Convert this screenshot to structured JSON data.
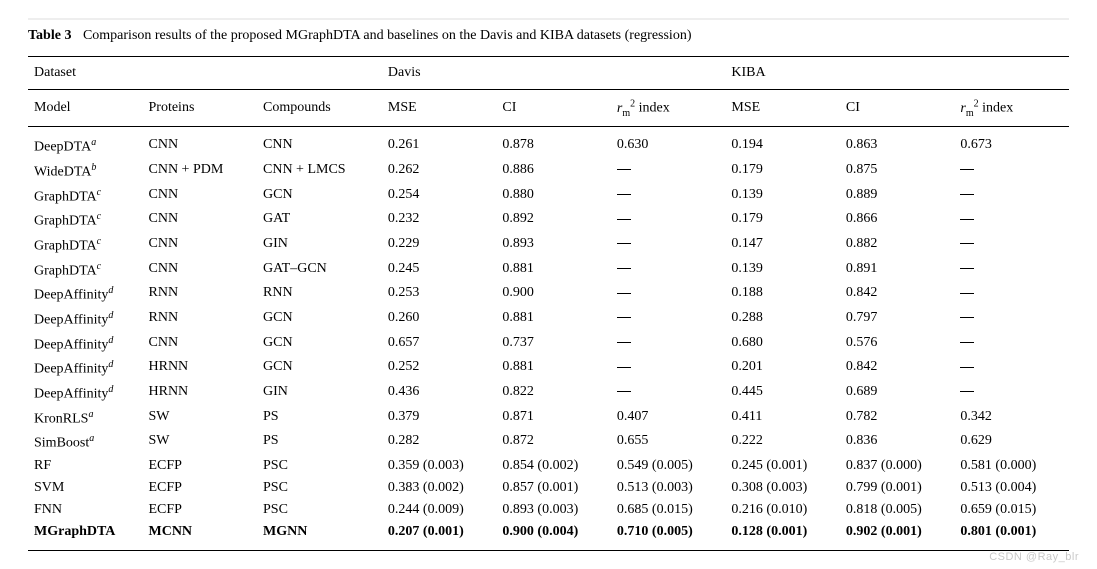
{
  "caption": {
    "label": "Table 3",
    "text": "Comparison results of the proposed MGraphDTA and baselines on the Davis and KIBA datasets (regression)"
  },
  "header": {
    "dataset": "Dataset",
    "davis": "Davis",
    "kiba": "KIBA",
    "model": "Model",
    "proteins": "Proteins",
    "compounds": "Compounds",
    "mse": "MSE",
    "ci": "CI",
    "rm_r": "r",
    "rm_m": "m",
    "rm_sq": "2",
    "rm_index": " index"
  },
  "rows": [
    {
      "model": "DeepDTA",
      "note": "a",
      "proteins": "CNN",
      "compounds": "CNN",
      "d_mse": "0.261",
      "d_ci": "0.878",
      "d_rm": "0.630",
      "k_mse": "0.194",
      "k_ci": "0.863",
      "k_rm": "0.673"
    },
    {
      "model": "WideDTA",
      "note": "b",
      "proteins": "CNN + PDM",
      "compounds": "CNN + LMCS",
      "d_mse": "0.262",
      "d_ci": "0.886",
      "d_rm": "—",
      "k_mse": "0.179",
      "k_ci": "0.875",
      "k_rm": "—"
    },
    {
      "model": "GraphDTA",
      "note": "c",
      "proteins": "CNN",
      "compounds": "GCN",
      "d_mse": "0.254",
      "d_ci": "0.880",
      "d_rm": "—",
      "k_mse": "0.139",
      "k_ci": "0.889",
      "k_rm": "—"
    },
    {
      "model": "GraphDTA",
      "note": "c",
      "proteins": "CNN",
      "compounds": "GAT",
      "d_mse": "0.232",
      "d_ci": "0.892",
      "d_rm": "—",
      "k_mse": "0.179",
      "k_ci": "0.866",
      "k_rm": "—"
    },
    {
      "model": "GraphDTA",
      "note": "c",
      "proteins": "CNN",
      "compounds": "GIN",
      "d_mse": "0.229",
      "d_ci": "0.893",
      "d_rm": "—",
      "k_mse": "0.147",
      "k_ci": "0.882",
      "k_rm": "—"
    },
    {
      "model": "GraphDTA",
      "note": "c",
      "proteins": "CNN",
      "compounds": "GAT–GCN",
      "d_mse": "0.245",
      "d_ci": "0.881",
      "d_rm": "—",
      "k_mse": "0.139",
      "k_ci": "0.891",
      "k_rm": "—"
    },
    {
      "model": "DeepAffinity",
      "note": "d",
      "proteins": "RNN",
      "compounds": "RNN",
      "d_mse": "0.253",
      "d_ci": "0.900",
      "d_rm": "—",
      "k_mse": "0.188",
      "k_ci": "0.842",
      "k_rm": "—"
    },
    {
      "model": "DeepAffinity",
      "note": "d",
      "proteins": "RNN",
      "compounds": "GCN",
      "d_mse": "0.260",
      "d_ci": "0.881",
      "d_rm": "—",
      "k_mse": "0.288",
      "k_ci": "0.797",
      "k_rm": "—"
    },
    {
      "model": "DeepAffinity",
      "note": "d",
      "proteins": "CNN",
      "compounds": "GCN",
      "d_mse": "0.657",
      "d_ci": "0.737",
      "d_rm": "—",
      "k_mse": "0.680",
      "k_ci": "0.576",
      "k_rm": "—"
    },
    {
      "model": "DeepAffinity",
      "note": "d",
      "proteins": "HRNN",
      "compounds": "GCN",
      "d_mse": "0.252",
      "d_ci": "0.881",
      "d_rm": "—",
      "k_mse": "0.201",
      "k_ci": "0.842",
      "k_rm": "—"
    },
    {
      "model": "DeepAffinity",
      "note": "d",
      "proteins": "HRNN",
      "compounds": "GIN",
      "d_mse": "0.436",
      "d_ci": "0.822",
      "d_rm": "—",
      "k_mse": "0.445",
      "k_ci": "0.689",
      "k_rm": "—"
    },
    {
      "model": "KronRLS",
      "note": "a",
      "proteins": "SW",
      "compounds": "PS",
      "d_mse": "0.379",
      "d_ci": "0.871",
      "d_rm": "0.407",
      "k_mse": "0.411",
      "k_ci": "0.782",
      "k_rm": "0.342"
    },
    {
      "model": "SimBoost",
      "note": "a",
      "proteins": "SW",
      "compounds": "PS",
      "d_mse": "0.282",
      "d_ci": "0.872",
      "d_rm": "0.655",
      "k_mse": "0.222",
      "k_ci": "0.836",
      "k_rm": "0.629"
    },
    {
      "model": "RF",
      "note": "",
      "proteins": "ECFP",
      "compounds": "PSC",
      "d_mse": "0.359 (0.003)",
      "d_ci": "0.854 (0.002)",
      "d_rm": "0.549 (0.005)",
      "k_mse": "0.245 (0.001)",
      "k_ci": "0.837 (0.000)",
      "k_rm": "0.581 (0.000)"
    },
    {
      "model": "SVM",
      "note": "",
      "proteins": "ECFP",
      "compounds": "PSC",
      "d_mse": "0.383 (0.002)",
      "d_ci": "0.857 (0.001)",
      "d_rm": "0.513 (0.003)",
      "k_mse": "0.308 (0.003)",
      "k_ci": "0.799 (0.001)",
      "k_rm": "0.513 (0.004)"
    },
    {
      "model": "FNN",
      "note": "",
      "proteins": "ECFP",
      "compounds": "PSC",
      "d_mse": "0.244 (0.009)",
      "d_ci": "0.893 (0.003)",
      "d_rm": "0.685 (0.015)",
      "k_mse": "0.216 (0.010)",
      "k_ci": "0.818 (0.005)",
      "k_rm": "0.659 (0.015)"
    },
    {
      "model": "MGraphDTA",
      "note": "",
      "proteins": "MCNN",
      "compounds": "MGNN",
      "d_mse": "0.207 (0.001)",
      "d_ci": "0.900 (0.004)",
      "d_rm": "0.710 (0.005)",
      "k_mse": "0.128 (0.001)",
      "k_ci": "0.902 (0.001)",
      "k_rm": "0.801 (0.001)",
      "bold": true
    }
  ],
  "watermark": "CSDN @Ray_blr"
}
